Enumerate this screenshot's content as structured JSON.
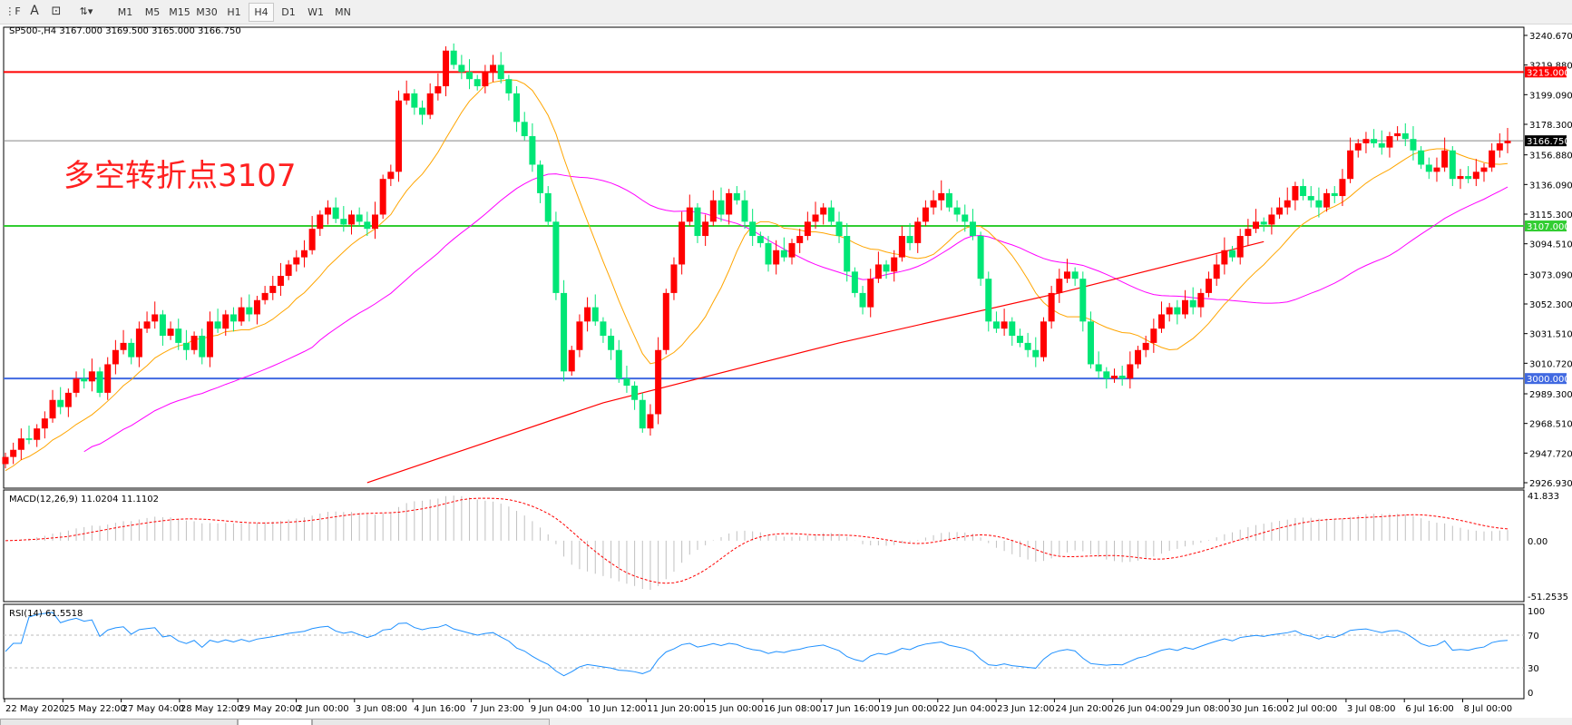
{
  "toolbar": {
    "icons": [
      "period-separators-icon",
      "text-icon",
      "text-label-icon",
      "arrows-icon"
    ],
    "timeframes": [
      "M1",
      "M5",
      "M15",
      "M30",
      "H1",
      "H4",
      "D1",
      "W1",
      "MN"
    ],
    "active": "H4"
  },
  "chart": {
    "header": "SP500-,H4  3167.000 3169.500 3165.000 3166.750",
    "annotation": "多空转折点3107",
    "colors": {
      "bull": "#00e676",
      "bear": "#ff0000",
      "ma_fast": "#ffa500",
      "ma_mid": "#ff00ff",
      "ma_slow": "#ff0000",
      "line_3215": "#ff0000",
      "line_3107": "#32cd32",
      "line_3000": "#4169e1",
      "macd_hist": "#c0c0c0",
      "macd_signal": "#ff0000",
      "rsi": "#1e90ff"
    },
    "price_axis": [
      "3240.670",
      "3219.880",
      "3199.090",
      "3178.300",
      "3156.880",
      "3136.090",
      "3115.300",
      "3094.510",
      "3073.090",
      "3052.300",
      "3031.510",
      "3010.720",
      "2989.300",
      "2968.510",
      "2947.720",
      "2926.930"
    ],
    "ylim": [
      2926.93,
      3240.67
    ],
    "hlines": [
      {
        "value": 3215,
        "label": "3215.000",
        "color": "#ff0000"
      },
      {
        "value": 3107,
        "label": "3107.000",
        "color": "#32cd32"
      },
      {
        "value": 3000,
        "label": "3000.000",
        "color": "#4169e1"
      }
    ],
    "current_price": {
      "value": 3166.75,
      "label": "3166.750"
    },
    "closes": [
      2945,
      2950,
      2958,
      2957,
      2965,
      2972,
      2985,
      2980,
      2990,
      3000,
      2998,
      3005,
      2990,
      3010,
      3020,
      3025,
      3015,
      3035,
      3040,
      3045,
      3030,
      3035,
      3025,
      3020,
      3030,
      3015,
      3040,
      3035,
      3045,
      3040,
      3050,
      3045,
      3055,
      3060,
      3065,
      3072,
      3080,
      3085,
      3090,
      3105,
      3115,
      3120,
      3112,
      3108,
      3115,
      3110,
      3105,
      3115,
      3140,
      3145,
      3195,
      3200,
      3190,
      3185,
      3200,
      3205,
      3230,
      3220,
      3215,
      3210,
      3205,
      3215,
      3220,
      3210,
      3200,
      3180,
      3170,
      3150,
      3130,
      3110,
      3060,
      3005,
      3020,
      3040,
      3050,
      3040,
      3030,
      3020,
      3000,
      2995,
      2985,
      2965,
      2975,
      3020,
      3060,
      3080,
      3110,
      3120,
      3100,
      3110,
      3125,
      3115,
      3130,
      3125,
      3110,
      3100,
      3095,
      3080,
      3090,
      3085,
      3095,
      3100,
      3110,
      3115,
      3120,
      3110,
      3100,
      3075,
      3060,
      3050,
      3070,
      3080,
      3075,
      3085,
      3100,
      3095,
      3110,
      3120,
      3125,
      3130,
      3120,
      3115,
      3110,
      3100,
      3070,
      3040,
      3035,
      3040,
      3030,
      3025,
      3020,
      3015,
      3040,
      3060,
      3070,
      3075,
      3070,
      3040,
      3010,
      3005,
      3000,
      3002,
      3000,
      3010,
      3020,
      3025,
      3035,
      3045,
      3050,
      3045,
      3055,
      3050,
      3060,
      3070,
      3080,
      3090,
      3085,
      3100,
      3105,
      3110,
      3108,
      3115,
      3120,
      3125,
      3135,
      3128,
      3125,
      3120,
      3130,
      3128,
      3140,
      3160,
      3165,
      3168,
      3165,
      3162,
      3170,
      3172,
      3168,
      3160,
      3150,
      3145,
      3148,
      3160,
      3140,
      3142,
      3140,
      3145,
      3148,
      3160,
      3165,
      3166.75
    ],
    "ma_slow": [
      [
        46,
        2927
      ],
      [
        76,
        2983
      ],
      [
        106,
        3025
      ],
      [
        134,
        3060
      ],
      [
        160,
        3096
      ]
    ]
  },
  "macd": {
    "label": "MACD(12,26,9) 11.0204 11.1102",
    "axis": [
      "41.833",
      "0.00",
      "-51.2535"
    ],
    "ylim": [
      -51.2535,
      41.833
    ]
  },
  "rsi": {
    "label": "RSI(14) 61.5518",
    "axis": [
      "100",
      "70",
      "30",
      "0"
    ],
    "levels": [
      70,
      30
    ]
  },
  "time_axis": [
    "22 May 2020",
    "25 May 22:00",
    "27 May 04:00",
    "28 May 12:00",
    "29 May 20:00",
    "2 Jun 00:00",
    "3 Jun 08:00",
    "4 Jun 16:00",
    "7 Jun 23:00",
    "9 Jun 04:00",
    "10 Jun 12:00",
    "11 Jun 20:00",
    "15 Jun 00:00",
    "16 Jun 08:00",
    "17 Jun 16:00",
    "19 Jun 00:00",
    "22 Jun 04:00",
    "23 Jun 12:00",
    "24 Jun 20:00",
    "26 Jun 04:00",
    "29 Jun 08:00",
    "30 Jun 16:00",
    "2 Jul 00:00",
    "3 Jul 08:00",
    "6 Jul 16:00",
    "8 Jul 00:00"
  ]
}
